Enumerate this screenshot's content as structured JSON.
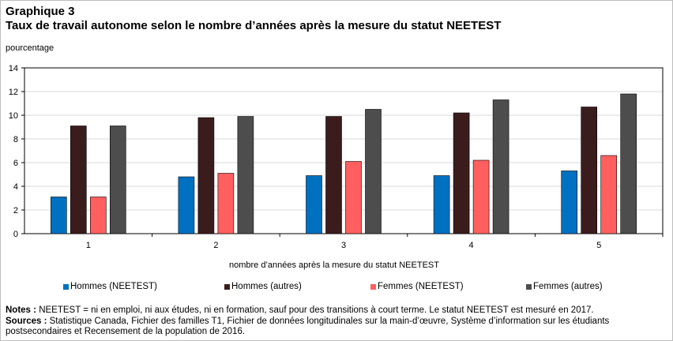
{
  "header": {
    "chart_number": "Graphique 3",
    "title": "Taux de travail autonome selon le nombre d’années après la mesure du statut NEETEST",
    "unit_label": "pourcentage"
  },
  "footer": {
    "notes_label": "Notes :",
    "notes_text": "NEETEST = ni en emploi, ni aux études, ni en formation, sauf pour des transitions à court terme. Le statut NEETEST est mesuré en 2017.",
    "sources_label": "Sources :",
    "sources_text": "Statistique Canada, Fichier des familles T1, Fichier de données longitudinales sur la main-d’œuvre, Système d’information sur les étudiants postsecondaires et Recensement de la population de 2016."
  },
  "chart_data": {
    "type": "bar",
    "title": "Taux de travail autonome selon le nombre d’années après la mesure du statut NEETEST",
    "xlabel": "nombre d’années après la mesure du statut NEETEST",
    "ylabel": "pourcentage",
    "categories": [
      "1",
      "2",
      "3",
      "4",
      "5"
    ],
    "ylim": [
      0,
      14
    ],
    "yticks": [
      0,
      2,
      4,
      6,
      8,
      10,
      12,
      14
    ],
    "grid": true,
    "legend_position": "bottom",
    "series": [
      {
        "name": "Hommes (NEETEST)",
        "color": "#0070c0",
        "values": [
          3.1,
          4.8,
          4.9,
          4.9,
          5.3
        ]
      },
      {
        "name": "Hommes (autres)",
        "color": "#3b1c1c",
        "values": [
          9.1,
          9.8,
          9.9,
          10.2,
          10.7
        ]
      },
      {
        "name": "Femmes (NEETEST)",
        "color": "#ff5f5f",
        "values": [
          3.1,
          5.1,
          6.1,
          6.2,
          6.6
        ]
      },
      {
        "name": "Femmes (autres)",
        "color": "#4d4d4d",
        "values": [
          9.1,
          9.9,
          10.5,
          11.3,
          11.8
        ]
      }
    ]
  }
}
